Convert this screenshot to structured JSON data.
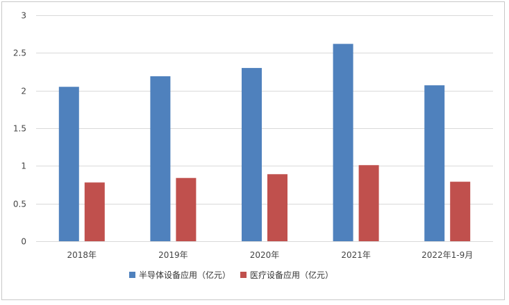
{
  "chart_data": {
    "type": "bar",
    "title": "",
    "xlabel": "",
    "ylabel": "",
    "categories": [
      "2018年",
      "2019年",
      "2020年",
      "2021年",
      "2022年1-9月"
    ],
    "series": [
      {
        "name": "半导体设备应用（亿元）",
        "color": "#4f81bd",
        "values": [
          2.05,
          2.19,
          2.3,
          2.62,
          2.07
        ]
      },
      {
        "name": "医疗设备应用（亿元）",
        "color": "#c0504d",
        "values": [
          0.78,
          0.84,
          0.89,
          1.01,
          0.79
        ]
      }
    ],
    "ylim": [
      0,
      3
    ],
    "yticks": [
      "0",
      "0.5",
      "1",
      "1.5",
      "2",
      "2.5",
      "3"
    ],
    "grid": true,
    "legend_position": "bottom"
  }
}
